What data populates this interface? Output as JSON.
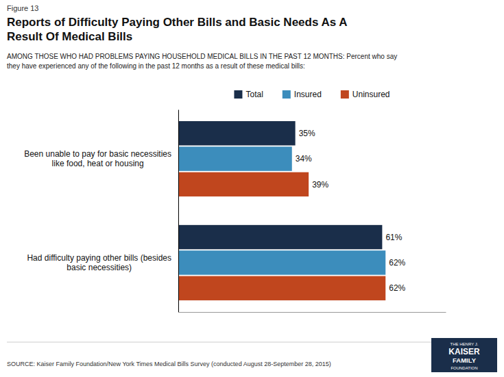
{
  "chart_data": {
    "type": "bar",
    "orientation": "horizontal",
    "title": "Reports of Difficulty Paying Other Bills and Basic Needs As A\nResult Of Medical Bills",
    "subtitle": "AMONG THOSE WHO HAD PROBLEMS PAYING HOUSEHOLD MEDICAL BILLS IN THE PAST 12 MONTHS: Percent who say\nthey have experienced any of the following in the past 12 months as a result of these medical bills:",
    "annotations": [
      "Figure 13",
      "SOURCE: Kaiser Family Foundation/New York Times Medical Bills Survey (conducted August 28-September 28, 2015)",
      "THE HENRY J.",
      "KAISER",
      "FAMILY",
      "FOUNDATION"
    ],
    "categories": [
      "Been unable to pay for basic necessities\nlike food, heat or housing",
      "Had difficulty paying other bills (besides\nbasic necessities)"
    ],
    "series": [
      {
        "name": "Total",
        "color": "#1a2e4a",
        "values": [
          35,
          61
        ],
        "value_labels": [
          "35%",
          "61%"
        ]
      },
      {
        "name": "Insured",
        "color": "#3c8dbc",
        "values": [
          34,
          62
        ],
        "value_labels": [
          "34%",
          "62%"
        ]
      },
      {
        "name": "Uninsured",
        "color": "#c0461e",
        "values": [
          39,
          62
        ],
        "value_labels": [
          "39%",
          "62%"
        ]
      }
    ],
    "xlim": [
      0,
      80
    ],
    "grid": false,
    "legend": "top",
    "data_labels": true,
    "tick_labels": "y"
  }
}
